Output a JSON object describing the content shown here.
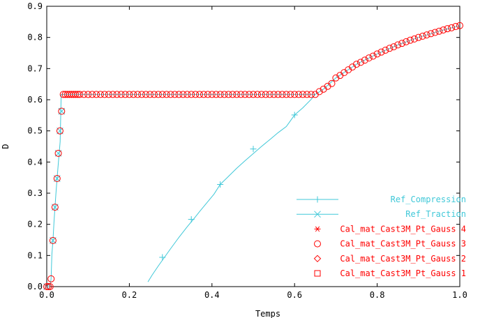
{
  "chart_data": {
    "type": "scatter",
    "title": "",
    "xlabel": "Temps",
    "ylabel": "D",
    "xlim": [
      0,
      1
    ],
    "ylim": [
      0,
      0.9
    ],
    "x_ticks": [
      "0.0",
      "0.2",
      "0.4",
      "0.6",
      "0.8",
      "1.0"
    ],
    "y_ticks": [
      "0.0",
      "0.1",
      "0.2",
      "0.3",
      "0.4",
      "0.5",
      "0.6",
      "0.7",
      "0.8",
      "0.9"
    ],
    "grid": false,
    "legend_position": "bottom-right",
    "colors": {
      "reference": "#40c8d8",
      "calc": "#ff0000",
      "axis": "#000000"
    },
    "series": [
      {
        "name": "Ref_Compression",
        "style": "line",
        "marker": "plus",
        "color": "#40c8d8",
        "x": [
          0.245,
          0.255,
          0.27,
          0.285,
          0.3,
          0.32,
          0.34,
          0.355,
          0.37,
          0.39,
          0.405,
          0.42,
          0.44,
          0.46,
          0.48,
          0.5,
          0.52,
          0.54,
          0.56,
          0.58,
          0.6,
          0.62,
          0.64,
          0.65
        ],
        "y": [
          0.015,
          0.037,
          0.066,
          0.094,
          0.122,
          0.158,
          0.192,
          0.216,
          0.241,
          0.273,
          0.297,
          0.328,
          0.354,
          0.38,
          0.404,
          0.427,
          0.45,
          0.472,
          0.494,
          0.514,
          0.551,
          0.574,
          0.601,
          0.617
        ],
        "marker_x": [
          0.28,
          0.35,
          0.42,
          0.5,
          0.6
        ],
        "marker_y": [
          0.094,
          0.216,
          0.328,
          0.442,
          0.551
        ]
      },
      {
        "name": "Ref_Traction",
        "style": "line",
        "marker": "x",
        "color": "#40c8d8",
        "x": [
          0.0,
          0.008,
          0.0105,
          0.0125,
          0.015,
          0.0175,
          0.02,
          0.0225,
          0.025,
          0.0275,
          0.03,
          0.0325,
          0.035,
          0.65,
          0.67,
          0.7,
          0.75,
          0.8,
          0.85,
          0.9,
          0.95,
          1.0
        ],
        "y": [
          0.0,
          0.0,
          0.025,
          0.105,
          0.148,
          0.208,
          0.255,
          0.303,
          0.347,
          0.388,
          0.428,
          0.465,
          0.617,
          0.617,
          0.634,
          0.67,
          0.714,
          0.747,
          0.776,
          0.8,
          0.82,
          0.838
        ],
        "marker_x": [
          0.0,
          0.015,
          0.02,
          0.025,
          0.028,
          0.032,
          0.036
        ],
        "marker_y": [
          0.0,
          0.148,
          0.255,
          0.347,
          0.428,
          0.5,
          0.563
        ]
      },
      {
        "name": "Cal_mat_Cast3M_Pt_Gauss 4",
        "style": "markers",
        "marker": "asterisk",
        "color": "#ff0000"
      },
      {
        "name": "Cal_mat_Cast3M_Pt_Gauss 3",
        "style": "markers",
        "marker": "circle",
        "color": "#ff0000",
        "x": [
          0.0,
          0.004,
          0.008,
          0.0105,
          0.015,
          0.02,
          0.025,
          0.028,
          0.032,
          0.036,
          0.04,
          0.045,
          0.05,
          0.055,
          0.06,
          0.065,
          0.07,
          0.075,
          0.08,
          0.09,
          0.1,
          0.11,
          0.12,
          0.13,
          0.14,
          0.15,
          0.16,
          0.17,
          0.18,
          0.19,
          0.2,
          0.21,
          0.22,
          0.23,
          0.24,
          0.25,
          0.26,
          0.27,
          0.28,
          0.29,
          0.3,
          0.31,
          0.32,
          0.33,
          0.34,
          0.35,
          0.36,
          0.37,
          0.38,
          0.39,
          0.4,
          0.41,
          0.42,
          0.43,
          0.44,
          0.45,
          0.46,
          0.47,
          0.48,
          0.49,
          0.5,
          0.51,
          0.52,
          0.53,
          0.54,
          0.55,
          0.56,
          0.57,
          0.58,
          0.59,
          0.6,
          0.61,
          0.62,
          0.63,
          0.64,
          0.65,
          0.66,
          0.67,
          0.68,
          0.69,
          0.7,
          0.71,
          0.72,
          0.73,
          0.74,
          0.75,
          0.76,
          0.77,
          0.78,
          0.79,
          0.8,
          0.81,
          0.82,
          0.83,
          0.84,
          0.85,
          0.86,
          0.87,
          0.88,
          0.89,
          0.9,
          0.91,
          0.92,
          0.93,
          0.94,
          0.95,
          0.96,
          0.97,
          0.98,
          0.99,
          1.0
        ],
        "y": [
          0.0,
          0.0,
          0.0,
          0.025,
          0.148,
          0.255,
          0.347,
          0.428,
          0.5,
          0.563,
          0.617,
          0.617,
          0.617,
          0.617,
          0.617,
          0.617,
          0.617,
          0.617,
          0.617,
          0.617,
          0.617,
          0.617,
          0.617,
          0.617,
          0.617,
          0.617,
          0.617,
          0.617,
          0.617,
          0.617,
          0.617,
          0.617,
          0.617,
          0.617,
          0.617,
          0.617,
          0.617,
          0.617,
          0.617,
          0.617,
          0.617,
          0.617,
          0.617,
          0.617,
          0.617,
          0.617,
          0.617,
          0.617,
          0.617,
          0.617,
          0.617,
          0.617,
          0.617,
          0.617,
          0.617,
          0.617,
          0.617,
          0.617,
          0.617,
          0.617,
          0.617,
          0.617,
          0.617,
          0.617,
          0.617,
          0.617,
          0.617,
          0.617,
          0.617,
          0.617,
          0.617,
          0.617,
          0.617,
          0.617,
          0.617,
          0.617,
          0.626,
          0.634,
          0.643,
          0.652,
          0.67,
          0.678,
          0.687,
          0.696,
          0.705,
          0.714,
          0.72,
          0.727,
          0.734,
          0.74,
          0.747,
          0.753,
          0.759,
          0.765,
          0.77,
          0.776,
          0.781,
          0.786,
          0.791,
          0.795,
          0.8,
          0.804,
          0.808,
          0.812,
          0.816,
          0.82,
          0.824,
          0.828,
          0.831,
          0.835,
          0.838
        ]
      },
      {
        "name": "Cal_mat_Cast3M_Pt_Gauss 2",
        "style": "markers",
        "marker": "diamond",
        "color": "#ff0000"
      },
      {
        "name": "Cal_mat_Cast3M_Pt_Gauss 1",
        "style": "markers",
        "marker": "square",
        "color": "#ff0000"
      }
    ]
  }
}
